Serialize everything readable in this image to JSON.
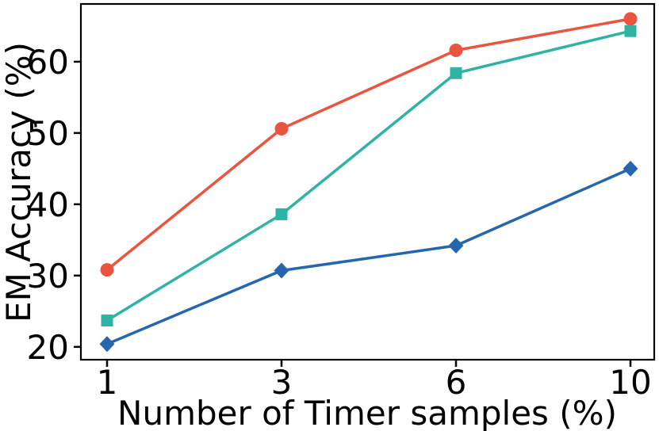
{
  "chart_data": {
    "type": "line",
    "title": "",
    "xlabel": "Number of Timer samples (%)",
    "ylabel": "EM Accuracy (%)",
    "x": [
      1,
      3,
      6,
      10
    ],
    "xtick_labels": [
      "1",
      "3",
      "6",
      "10"
    ],
    "x_spacing": "even",
    "yticks": [
      20,
      30,
      40,
      50,
      60
    ],
    "ylim": [
      18.2,
      68.1
    ],
    "grid": false,
    "legend": "none",
    "axis_color": "#000000",
    "background_color": "#ffffff",
    "series": [
      {
        "name": "red-circle-series",
        "marker": "circle",
        "color": "#e9553e",
        "values": [
          30.8,
          50.6,
          61.6,
          66.0
        ]
      },
      {
        "name": "teal-square-series",
        "marker": "square",
        "color": "#2fb3a2",
        "values": [
          23.7,
          38.6,
          58.4,
          64.3
        ]
      },
      {
        "name": "blue-diamond-series",
        "marker": "diamond",
        "color": "#2566ac",
        "values": [
          20.4,
          30.7,
          34.2,
          45.0
        ]
      }
    ]
  }
}
